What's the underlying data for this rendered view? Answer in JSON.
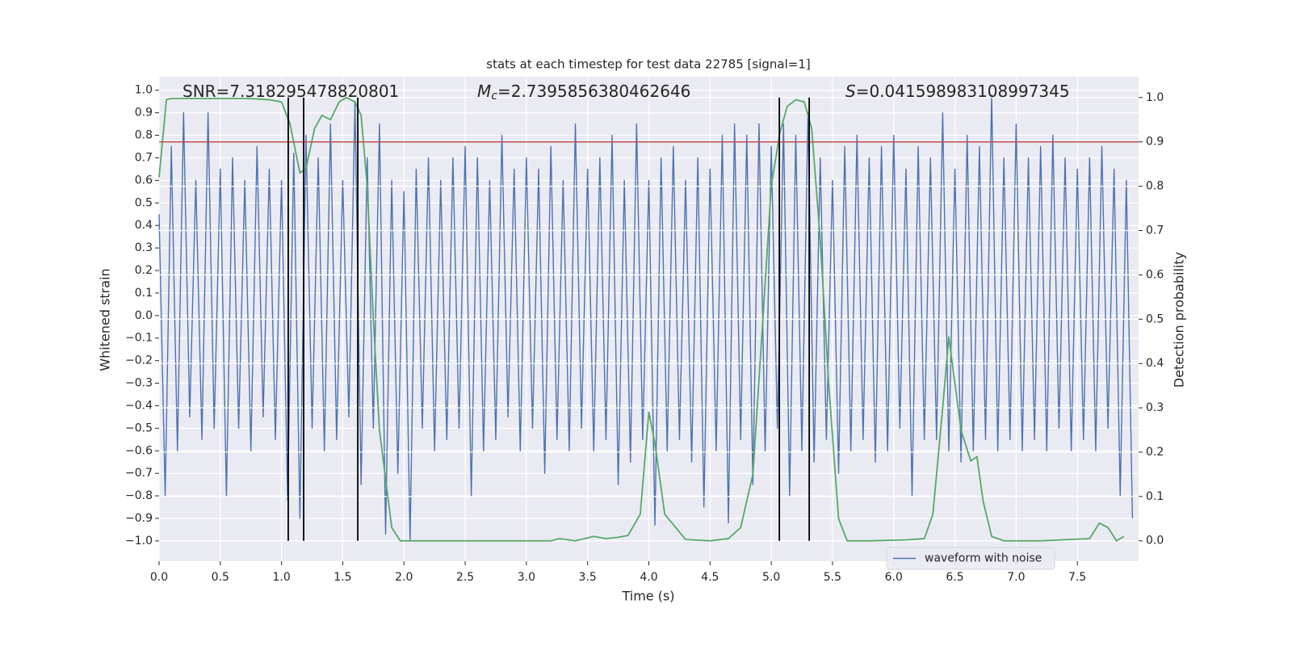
{
  "chart_data": {
    "type": "line",
    "title": "stats at each timestep for test data 22785 [signal=1]",
    "xlabel": "Time (s)",
    "ylabel": "Whitened strain",
    "y2label": "Detection probability",
    "background": "#eaeaf2",
    "grid": true,
    "legend": "lower right",
    "xlim": [
      0,
      8
    ],
    "ylim": [
      -1.09,
      1.06
    ],
    "y2lim": [
      -0.046,
      1.047
    ],
    "xticks": [
      {
        "value": 0,
        "label": "0.0"
      },
      {
        "value": 0.5,
        "label": "0.5"
      },
      {
        "value": 1,
        "label": "1.0"
      },
      {
        "value": 1.5,
        "label": "1.5"
      },
      {
        "value": 2,
        "label": "2.0"
      },
      {
        "value": 2.5,
        "label": "2.5"
      },
      {
        "value": 3,
        "label": "3.0"
      },
      {
        "value": 3.5,
        "label": "3.5"
      },
      {
        "value": 4,
        "label": "4.0"
      },
      {
        "value": 4.5,
        "label": "4.5"
      },
      {
        "value": 5,
        "label": "5.0"
      },
      {
        "value": 5.5,
        "label": "5.5"
      },
      {
        "value": 6,
        "label": "6.0"
      },
      {
        "value": 6.5,
        "label": "6.5"
      },
      {
        "value": 7,
        "label": "7.0"
      },
      {
        "value": 7.5,
        "label": "7.5"
      }
    ],
    "yticks": [
      {
        "value": -1,
        "label": "−1.0"
      },
      {
        "value": -0.9,
        "label": "−0.9"
      },
      {
        "value": -0.8,
        "label": "−0.8"
      },
      {
        "value": -0.7,
        "label": "−0.7"
      },
      {
        "value": -0.6,
        "label": "−0.6"
      },
      {
        "value": -0.5,
        "label": "−0.5"
      },
      {
        "value": -0.4,
        "label": "−0.4"
      },
      {
        "value": -0.3,
        "label": "−0.3"
      },
      {
        "value": -0.2,
        "label": "−0.2"
      },
      {
        "value": -0.1,
        "label": "−0.1"
      },
      {
        "value": 0,
        "label": "0.0"
      },
      {
        "value": 0.1,
        "label": "0.1"
      },
      {
        "value": 0.2,
        "label": "0.2"
      },
      {
        "value": 0.3,
        "label": "0.3"
      },
      {
        "value": 0.4,
        "label": "0.4"
      },
      {
        "value": 0.5,
        "label": "0.5"
      },
      {
        "value": 0.6,
        "label": "0.6"
      },
      {
        "value": 0.7,
        "label": "0.7"
      },
      {
        "value": 0.8,
        "label": "0.8"
      },
      {
        "value": 0.9,
        "label": "0.9"
      },
      {
        "value": 1,
        "label": "1.0"
      }
    ],
    "y2ticks": [
      {
        "value": 0,
        "label": "0.0"
      },
      {
        "value": 0.1,
        "label": "0.1"
      },
      {
        "value": 0.2,
        "label": "0.2"
      },
      {
        "value": 0.3,
        "label": "0.3"
      },
      {
        "value": 0.4,
        "label": "0.4"
      },
      {
        "value": 0.5,
        "label": "0.5"
      },
      {
        "value": 0.6,
        "label": "0.6"
      },
      {
        "value": 0.7,
        "label": "0.7"
      },
      {
        "value": 0.8,
        "label": "0.8"
      },
      {
        "value": 0.9,
        "label": "0.9"
      },
      {
        "value": 1,
        "label": "1.0"
      }
    ],
    "annotations": [
      {
        "parts": [
          {
            "text": "SNR=7.318295478820801"
          }
        ]
      },
      {
        "parts": [
          {
            "text": "M",
            "style": "italic"
          },
          {
            "text": "c",
            "style": "sub"
          },
          {
            "text": "=2.7395856380462646"
          }
        ]
      },
      {
        "parts": [
          {
            "text": "S",
            "style": "italic"
          },
          {
            "text": "=0.041598983108997345"
          }
        ]
      }
    ],
    "threshold": {
      "value": 0.9,
      "axis": "y2",
      "color": "#c44e52"
    },
    "vlines": {
      "color": "#000000",
      "axis": "y2",
      "span": [
        0,
        1
      ],
      "x": [
        1.055,
        1.181,
        1.623,
        5.066,
        5.31
      ]
    },
    "series": [
      {
        "name": "waveform with noise",
        "color": "#4c72b0",
        "x": [
          0,
          0.05,
          0.1,
          0.15,
          0.2,
          0.25,
          0.3,
          0.35,
          0.4,
          0.45,
          0.5,
          0.55,
          0.6,
          0.65,
          0.7,
          0.75,
          0.8,
          0.85,
          0.9,
          0.95,
          1,
          1.05,
          1.1,
          1.15,
          1.2,
          1.25,
          1.3,
          1.35,
          1.4,
          1.45,
          1.5,
          1.55,
          1.6,
          1.65,
          1.7,
          1.75,
          1.8,
          1.85,
          1.9,
          1.95,
          2,
          2.05,
          2.1,
          2.15,
          2.2,
          2.25,
          2.3,
          2.35,
          2.4,
          2.45,
          2.5,
          2.55,
          2.6,
          2.65,
          2.7,
          2.75,
          2.8,
          2.85,
          2.9,
          2.95,
          3,
          3.05,
          3.1,
          3.15,
          3.2,
          3.25,
          3.3,
          3.35,
          3.4,
          3.45,
          3.5,
          3.55,
          3.6,
          3.65,
          3.7,
          3.75,
          3.8,
          3.85,
          3.9,
          3.95,
          4,
          4.05,
          4.1,
          4.15,
          4.2,
          4.25,
          4.3,
          4.35,
          4.4,
          4.45,
          4.5,
          4.55,
          4.6,
          4.65,
          4.7,
          4.75,
          4.8,
          4.85,
          4.9,
          4.95,
          5,
          5.05,
          5.1,
          5.15,
          5.2,
          5.25,
          5.3,
          5.35,
          5.4,
          5.45,
          5.5,
          5.55,
          5.6,
          5.65,
          5.7,
          5.75,
          5.8,
          5.85,
          5.9,
          5.95,
          6,
          6.05,
          6.1,
          6.15,
          6.2,
          6.25,
          6.3,
          6.35,
          6.4,
          6.45,
          6.5,
          6.55,
          6.6,
          6.65,
          6.7,
          6.75,
          6.8,
          6.85,
          6.9,
          6.95,
          7,
          7.05,
          7.1,
          7.15,
          7.2,
          7.25,
          7.3,
          7.35,
          7.4,
          7.45,
          7.5,
          7.55,
          7.6,
          7.65,
          7.7,
          7.75,
          7.8,
          7.85,
          7.9,
          7.95
        ],
        "values": [
          0.45,
          -0.8,
          0.75,
          -0.6,
          0.9,
          -0.45,
          0.6,
          -0.55,
          0.9,
          -0.5,
          0.65,
          -0.8,
          0.7,
          -0.5,
          0.6,
          -0.6,
          0.75,
          -0.45,
          0.65,
          -0.55,
          0.6,
          -0.82,
          0.72,
          -0.9,
          0.8,
          -0.5,
          0.7,
          -0.6,
          0.85,
          -0.55,
          0.6,
          -0.45,
          0.95,
          -0.75,
          0.7,
          -0.5,
          0.85,
          -0.97,
          0.6,
          -0.7,
          0.55,
          -1.0,
          0.65,
          -0.5,
          0.7,
          -0.6,
          0.6,
          -0.55,
          0.7,
          -0.5,
          0.75,
          -0.8,
          0.7,
          -0.6,
          0.6,
          -0.55,
          0.8,
          -0.45,
          0.65,
          -0.6,
          0.7,
          -0.5,
          0.65,
          -0.7,
          0.75,
          -0.55,
          0.6,
          -0.6,
          0.85,
          -0.5,
          0.65,
          -0.6,
          0.7,
          -0.55,
          0.8,
          -0.75,
          0.6,
          -0.65,
          0.85,
          -0.55,
          0.6,
          -0.93,
          0.7,
          -0.6,
          0.75,
          -0.55,
          0.6,
          -0.65,
          0.7,
          -0.85,
          0.65,
          -0.6,
          0.8,
          -0.92,
          0.85,
          -0.55,
          0.8,
          -0.75,
          0.85,
          -0.6,
          0.75,
          -0.5,
          0.85,
          -0.8,
          0.8,
          -0.6,
          0.9,
          -0.65,
          0.7,
          -0.55,
          0.6,
          -0.7,
          0.75,
          -0.6,
          0.8,
          -0.55,
          0.7,
          -0.65,
          0.75,
          -0.6,
          0.8,
          -0.5,
          0.65,
          -0.8,
          0.75,
          -0.55,
          0.7,
          -0.55,
          0.9,
          -0.6,
          0.65,
          -0.65,
          0.8,
          -0.6,
          0.75,
          -0.55,
          0.98,
          -0.6,
          0.7,
          -0.55,
          0.85,
          -0.6,
          0.7,
          -0.55,
          0.75,
          -0.6,
          0.8,
          -0.5,
          0.7,
          -0.6,
          0.65,
          -0.55,
          0.7,
          -0.6,
          0.75,
          -0.5,
          0.65,
          -0.8,
          0.6,
          -0.9
        ]
      },
      {
        "color": "#55a868",
        "axis": "y2",
        "x": [
          0,
          0.06,
          0.1,
          0.2,
          0.3,
          0.4,
          0.5,
          0.6,
          0.7,
          0.8,
          0.9,
          1,
          1.07,
          1.15,
          1.2,
          1.27,
          1.33,
          1.4,
          1.47,
          1.53,
          1.6,
          1.65,
          1.7,
          1.75,
          1.8,
          1.9,
          1.97,
          2.1,
          2.5,
          3,
          3.2,
          3.27,
          3.4,
          3.55,
          3.65,
          3.75,
          3.83,
          3.93,
          4,
          4.05,
          4.13,
          4.3,
          4.5,
          4.65,
          4.75,
          4.85,
          4.92,
          5,
          5.07,
          5.13,
          5.2,
          5.27,
          5.33,
          5.4,
          5.47,
          5.55,
          5.62,
          5.8,
          6.1,
          6.25,
          6.32,
          6.4,
          6.45,
          6.55,
          6.63,
          6.68,
          6.73,
          6.8,
          6.9,
          7.2,
          7.6,
          7.68,
          7.75,
          7.82,
          7.88
        ],
        "values": [
          0.82,
          0.995,
          0.998,
          0.998,
          0.998,
          0.998,
          0.998,
          0.998,
          0.998,
          0.997,
          0.995,
          0.99,
          0.94,
          0.83,
          0.84,
          0.93,
          0.96,
          0.95,
          0.99,
          1.0,
          0.99,
          0.96,
          0.8,
          0.5,
          0.25,
          0.03,
          0.0,
          0.0,
          0.0,
          0.0,
          0.0,
          0.005,
          0.0,
          0.01,
          0.005,
          0.008,
          0.012,
          0.06,
          0.29,
          0.22,
          0.06,
          0.003,
          0.0,
          0.005,
          0.03,
          0.15,
          0.45,
          0.8,
          0.92,
          0.98,
          0.995,
          0.99,
          0.93,
          0.68,
          0.35,
          0.05,
          0.0,
          0.0,
          0.002,
          0.005,
          0.06,
          0.3,
          0.46,
          0.25,
          0.18,
          0.19,
          0.09,
          0.01,
          0.0,
          0.0,
          0.005,
          0.04,
          0.03,
          0.0,
          0.01
        ]
      }
    ]
  }
}
